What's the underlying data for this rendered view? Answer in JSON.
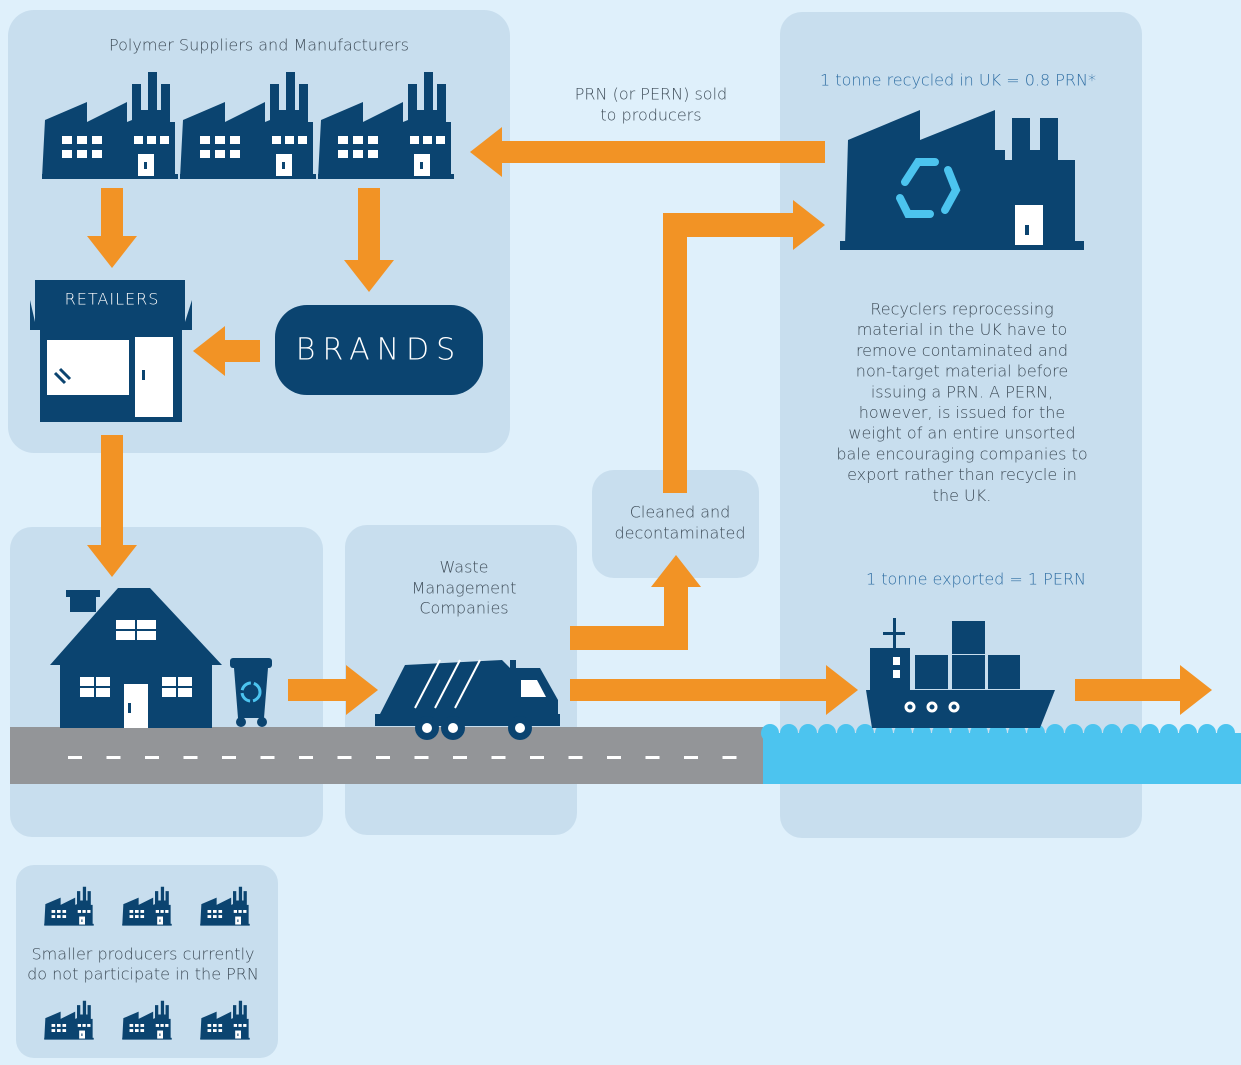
{
  "suppliers_panel": {
    "title": "Polymer Suppliers and Manufacturers"
  },
  "prn_sale": {
    "lines": [
      "PRN (or PERN) sold",
      "to producers"
    ]
  },
  "retailers": {
    "label": "RETAILERS"
  },
  "brands": {
    "label": "BRANDS"
  },
  "recycler_panel": {
    "heading": "1 tonne recycled in UK = 0.8 PRN*",
    "lines": [
      "Recyclers reprocessing",
      "material in the UK have to",
      "remove contaminated and",
      "non-target material before",
      "issuing a PRN. A PERN,",
      "however, is issued for the",
      "weight of an entire unsorted",
      "bale encouraging companies to",
      "export rather than recycle in",
      "the UK."
    ],
    "export_heading": "1 tonne exported = 1 PERN"
  },
  "cleaned": {
    "lines": [
      "Cleaned and",
      "decontaminated"
    ]
  },
  "waste_management": {
    "lines": [
      "Waste",
      "Management",
      "Companies"
    ]
  },
  "small_producers": {
    "lines": [
      "Smaller producers currently",
      "do not participate in the PRN"
    ]
  }
}
